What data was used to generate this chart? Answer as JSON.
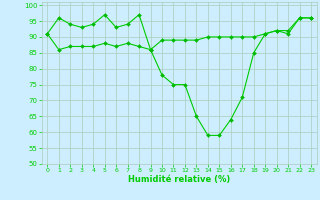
{
  "title": "",
  "xlabel": "Humidité relative (%)",
  "ylabel": "",
  "bg_color": "#cceeff",
  "grid_color": "#aaccbb",
  "line_color": "#00cc00",
  "marker_color": "#00bb00",
  "ylim": [
    50,
    101
  ],
  "xlim": [
    -0.5,
    23.5
  ],
  "yticks": [
    50,
    55,
    60,
    65,
    70,
    75,
    80,
    85,
    90,
    95,
    100
  ],
  "xticks": [
    0,
    1,
    2,
    3,
    4,
    5,
    6,
    7,
    8,
    9,
    10,
    11,
    12,
    13,
    14,
    15,
    16,
    17,
    18,
    19,
    20,
    21,
    22,
    23
  ],
  "series1_x": [
    0,
    1,
    2,
    3,
    4,
    5,
    6,
    7,
    8,
    9,
    10,
    11,
    12,
    13,
    14,
    15,
    16,
    17,
    18,
    19,
    20,
    21,
    22,
    23
  ],
  "series1_y": [
    91,
    96,
    94,
    93,
    94,
    97,
    93,
    94,
    97,
    86,
    89,
    89,
    89,
    89,
    90,
    90,
    90,
    90,
    90,
    91,
    92,
    91,
    96,
    96
  ],
  "series2_x": [
    0,
    1,
    2,
    3,
    4,
    5,
    6,
    7,
    8,
    9,
    10,
    11,
    12,
    13,
    14,
    15,
    16,
    17,
    18,
    19,
    20,
    21,
    22,
    23
  ],
  "series2_y": [
    91,
    86,
    87,
    87,
    87,
    88,
    87,
    88,
    87,
    86,
    78,
    75,
    75,
    65,
    59,
    59,
    64,
    71,
    85,
    91,
    92,
    92,
    96,
    96
  ]
}
